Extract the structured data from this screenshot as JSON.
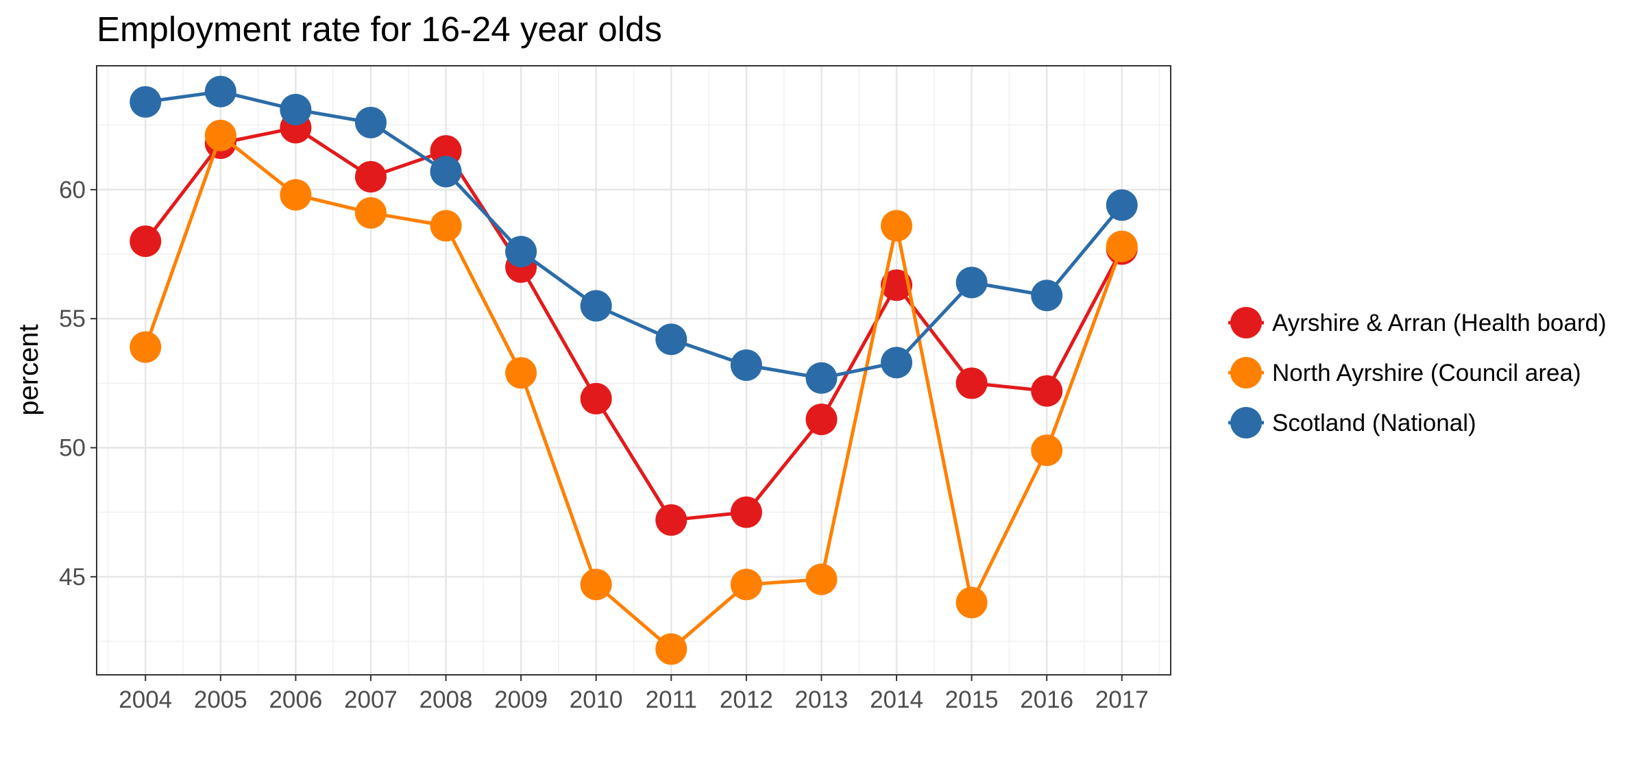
{
  "chart_data": {
    "type": "line",
    "title": "Employment rate for 16-24 year olds",
    "xlabel": "",
    "ylabel": "percent",
    "x": [
      "2004",
      "2005",
      "2006",
      "2007",
      "2008",
      "2009",
      "2010",
      "2011",
      "2012",
      "2013",
      "2014",
      "2015",
      "2016",
      "2017"
    ],
    "ylim": [
      41.2,
      64.8
    ],
    "yticks": [
      45,
      50,
      55,
      60
    ],
    "grid": true,
    "legend_position": "right",
    "series": [
      {
        "name": "Ayrshire & Arran (Health board)",
        "color": "#e31a1c",
        "values": [
          58.0,
          61.8,
          62.4,
          60.5,
          61.5,
          57.0,
          51.9,
          47.2,
          47.5,
          51.1,
          56.3,
          52.5,
          52.2,
          57.7
        ]
      },
      {
        "name": "North Ayrshire (Council area)",
        "color": "#ff8000",
        "values": [
          53.9,
          62.1,
          59.8,
          59.1,
          58.6,
          52.9,
          44.7,
          42.2,
          44.7,
          44.9,
          58.6,
          44.0,
          49.9,
          57.8
        ]
      },
      {
        "name": "Scotland (National)",
        "color": "#2b6ca8",
        "values": [
          63.4,
          63.8,
          63.1,
          62.6,
          60.7,
          57.6,
          55.5,
          54.2,
          53.2,
          52.7,
          53.3,
          56.4,
          55.9,
          59.4
        ]
      }
    ]
  }
}
